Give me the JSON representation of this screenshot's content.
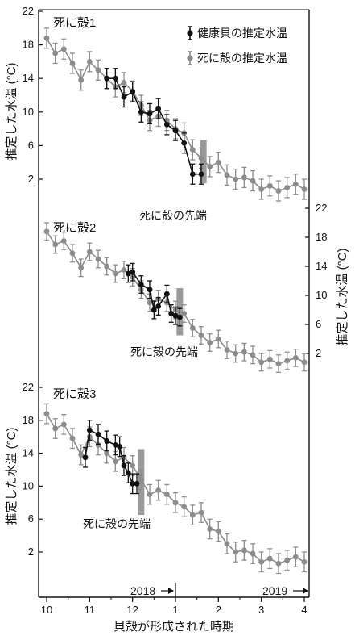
{
  "chart_data": {
    "type": "line",
    "xlabel": "貝殻が形成された時期",
    "x_ticks": [
      "10",
      "11",
      "12",
      "1",
      "2",
      "3",
      "4"
    ],
    "xlim": [
      10,
      16
    ],
    "year_labels": [
      "2018",
      "2019"
    ],
    "ylabel": "推定した水温 (°C)",
    "legend": [
      "健康貝の推定水温",
      "死に殻の推定水温"
    ],
    "colors": {
      "healthy": "#111111",
      "dead": "#8c8c8c",
      "tip_bar": "#9a9a9a"
    },
    "panels": [
      {
        "title": "死に殻1",
        "y_ticks": [
          "22",
          "18",
          "14",
          "10",
          "6",
          "2"
        ],
        "ylim": [
          0,
          22
        ],
        "y_axis_side": "left",
        "tip_label": "死に殻の先端",
        "tip_x": 13.65,
        "tip_range": [
          1.5,
          6.7
        ],
        "series": [
          {
            "name": "死に殻の推定水温",
            "color": "#8c8c8c",
            "x": [
              10.0,
              10.2,
              10.4,
              10.6,
              10.8,
              11.0,
              11.2,
              11.4,
              11.6,
              11.8,
              12.0,
              12.2,
              12.4,
              12.6,
              12.8,
              13.0,
              13.2,
              13.4,
              13.6,
              13.8,
              14.0,
              14.2,
              14.4,
              14.6,
              14.8,
              15.0,
              15.2,
              15.4,
              15.6,
              15.8,
              16.0
            ],
            "y": [
              18.8,
              17.0,
              17.5,
              15.8,
              13.8,
              16.0,
              15.0,
              14.0,
              13.0,
              13.5,
              12.5,
              10.8,
              9.0,
              9.5,
              9.0,
              8.0,
              7.5,
              5.5,
              4.5,
              3.5,
              4.0,
              2.5,
              2.0,
              2.2,
              1.8,
              0.8,
              1.2,
              0.6,
              1.0,
              1.4,
              0.8
            ],
            "err": [
              1.2,
              1.2,
              1.2,
              1.2,
              1.2,
              1.2,
              1.2,
              1.2,
              1.2,
              1.2,
              1.2,
              1.2,
              1.2,
              1.2,
              1.2,
              1.2,
              1.2,
              1.2,
              1.2,
              1.2,
              1.2,
              1.2,
              1.2,
              1.2,
              1.2,
              1.2,
              1.2,
              1.2,
              1.2,
              1.2,
              1.2
            ]
          },
          {
            "name": "健康貝の推定水温",
            "color": "#111111",
            "x": [
              11.4,
              11.6,
              11.8,
              12.0,
              12.2,
              12.4,
              12.6,
              12.8,
              13.0,
              13.2,
              13.4,
              13.6
            ],
            "y": [
              14.0,
              14.0,
              11.8,
              12.4,
              10.0,
              9.8,
              10.4,
              8.5,
              7.8,
              6.3,
              2.6,
              2.6
            ],
            "err": [
              1.2,
              1.2,
              1.2,
              1.2,
              1.2,
              1.2,
              1.2,
              1.2,
              1.2,
              1.2,
              1.2,
              1.2
            ]
          }
        ]
      },
      {
        "title": "死に殻2",
        "y_ticks": [
          "22",
          "18",
          "14",
          "10",
          "6",
          "2"
        ],
        "ylim": [
          0,
          22
        ],
        "y_axis_side": "right",
        "tip_label": "死に殻の先端",
        "tip_x": 13.1,
        "tip_range": [
          4.5,
          11.0
        ],
        "series": [
          {
            "name": "死に殻の推定水温",
            "color": "#8c8c8c",
            "x": [
              10.0,
              10.2,
              10.4,
              10.6,
              10.8,
              11.0,
              11.2,
              11.4,
              11.6,
              11.8,
              12.0,
              12.2,
              12.4,
              12.6,
              12.8,
              13.0,
              13.2,
              13.4,
              13.6,
              13.8,
              14.0,
              14.2,
              14.4,
              14.6,
              14.8,
              15.0,
              15.2,
              15.4,
              15.6,
              15.8,
              16.0
            ],
            "y": [
              18.8,
              17.0,
              17.5,
              15.8,
              13.8,
              16.0,
              15.0,
              14.0,
              13.0,
              13.5,
              12.5,
              10.8,
              9.0,
              9.5,
              9.0,
              8.0,
              7.5,
              5.5,
              4.5,
              3.5,
              4.0,
              2.5,
              2.0,
              2.2,
              1.8,
              0.8,
              1.2,
              0.6,
              1.0,
              1.4,
              0.8
            ],
            "err": [
              1.2,
              1.2,
              1.2,
              1.2,
              1.2,
              1.2,
              1.2,
              1.2,
              1.2,
              1.2,
              1.2,
              1.2,
              1.2,
              1.2,
              1.2,
              1.2,
              1.2,
              1.2,
              1.2,
              1.2,
              1.2,
              1.2,
              1.2,
              1.2,
              1.2,
              1.2,
              1.2,
              1.2,
              1.2,
              1.2,
              1.2
            ]
          },
          {
            "name": "健康貝の推定水温",
            "color": "#111111",
            "x": [
              11.9,
              12.0,
              12.2,
              12.4,
              12.5,
              12.6,
              12.8,
              12.9,
              13.0,
              13.1
            ],
            "y": [
              13.0,
              13.2,
              11.5,
              10.8,
              8.0,
              8.5,
              10.2,
              7.5,
              7.2,
              7.0
            ],
            "err": [
              1.2,
              1.2,
              1.2,
              1.2,
              1.2,
              1.2,
              1.2,
              1.2,
              1.2,
              1.2
            ]
          }
        ]
      },
      {
        "title": "死に殻3",
        "y_ticks": [
          "22",
          "18",
          "14",
          "10",
          "6",
          "2"
        ],
        "ylim": [
          0,
          22
        ],
        "y_axis_side": "left",
        "tip_label": "死に殻の先端",
        "tip_x": 12.2,
        "tip_range": [
          6.5,
          14.5
        ],
        "series": [
          {
            "name": "死に殻の推定水温",
            "color": "#8c8c8c",
            "x": [
              10.0,
              10.2,
              10.4,
              10.6,
              10.8,
              11.0,
              11.2,
              11.4,
              11.6,
              11.8,
              12.0,
              12.2,
              12.4,
              12.6,
              12.8,
              13.0,
              13.2,
              13.4,
              13.6,
              13.8,
              14.0,
              14.2,
              14.4,
              14.6,
              14.8,
              15.0,
              15.2,
              15.4,
              15.6,
              15.8,
              16.0
            ],
            "y": [
              18.8,
              17.0,
              17.5,
              15.8,
              13.8,
              16.0,
              15.0,
              14.0,
              13.0,
              13.5,
              12.5,
              10.8,
              9.0,
              9.5,
              9.0,
              8.0,
              7.5,
              6.5,
              6.8,
              4.8,
              4.5,
              3.0,
              2.0,
              2.2,
              1.8,
              0.8,
              1.2,
              0.6,
              1.0,
              1.4,
              0.8
            ],
            "err": [
              1.2,
              1.2,
              1.2,
              1.2,
              1.2,
              1.2,
              1.2,
              1.2,
              1.2,
              1.2,
              1.2,
              1.2,
              1.2,
              1.2,
              1.2,
              1.2,
              1.2,
              1.2,
              1.2,
              1.2,
              1.2,
              1.2,
              1.2,
              1.2,
              1.2,
              1.2,
              1.2,
              1.2,
              1.2,
              1.2,
              1.2
            ]
          },
          {
            "name": "健康貝の推定水温",
            "color": "#111111",
            "x": [
              10.9,
              11.0,
              11.2,
              11.4,
              11.6,
              11.7,
              11.8,
              11.9,
              12.0,
              12.1
            ],
            "y": [
              13.5,
              16.8,
              16.3,
              15.5,
              15.0,
              14.8,
              12.5,
              11.6,
              10.3,
              10.3
            ],
            "err": [
              1.2,
              1.2,
              1.2,
              1.2,
              1.2,
              1.2,
              1.2,
              1.2,
              1.2,
              1.2
            ]
          }
        ]
      }
    ]
  }
}
